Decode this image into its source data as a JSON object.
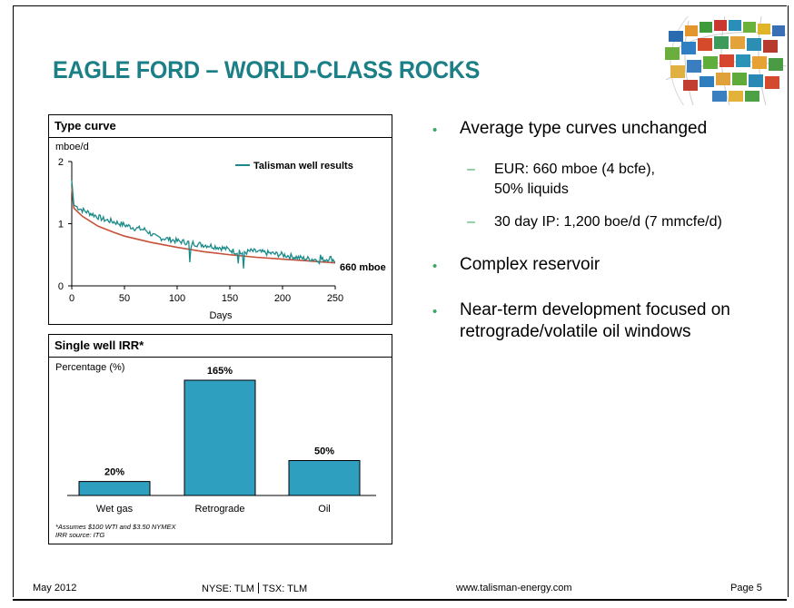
{
  "title": "EAGLE FORD – WORLD-CLASS ROCKS",
  "type_curve": {
    "panel_title": "Type curve",
    "y_unit": "mboe/d",
    "x_label": "Days",
    "legend": "Talisman well results",
    "end_label": "660 mboe",
    "x_ticks": [
      "0",
      "50",
      "100",
      "150",
      "200",
      "250"
    ],
    "y_ticks": [
      "0",
      "1",
      "2"
    ]
  },
  "irr": {
    "panel_title": "Single well IRR*",
    "y_unit": "Percentage (%)",
    "footnote_1": "*Assumes $100 WTI and $3.50 NYMEX",
    "footnote_2": "IRR source: ITG"
  },
  "chart_data": [
    {
      "type": "line",
      "title": "Type curve",
      "xlabel": "Days",
      "ylabel": "mboe/d",
      "xlim": [
        0,
        250
      ],
      "ylim": [
        0,
        2
      ],
      "series": [
        {
          "name": "Talisman well results",
          "color": "#1a8a8a",
          "x": [
            0,
            2,
            5,
            10,
            20,
            30,
            40,
            50,
            60,
            70,
            80,
            90,
            100,
            110,
            120,
            130,
            140,
            150,
            160,
            170,
            180,
            190,
            200,
            210,
            220,
            230,
            240,
            245,
            250
          ],
          "y": [
            1.7,
            1.3,
            1.27,
            1.22,
            1.15,
            1.07,
            1.03,
            0.98,
            0.93,
            0.9,
            0.78,
            0.76,
            0.72,
            0.7,
            0.67,
            0.65,
            0.62,
            0.58,
            0.52,
            0.56,
            0.54,
            0.52,
            0.5,
            0.47,
            0.44,
            0.43,
            0.42,
            0.45,
            0.4
          ]
        },
        {
          "name": "Type curve",
          "color": "#c8503a",
          "x": [
            0,
            2,
            10,
            25,
            40,
            50,
            75,
            100,
            125,
            150,
            175,
            200,
            225,
            250
          ],
          "y": [
            1.6,
            1.25,
            1.12,
            0.96,
            0.86,
            0.8,
            0.7,
            0.62,
            0.55,
            0.5,
            0.46,
            0.43,
            0.4,
            0.37
          ]
        }
      ]
    },
    {
      "type": "bar",
      "title": "Single well IRR*",
      "ylabel": "Percentage (%)",
      "categories": [
        "Wet gas",
        "Retrograde",
        "Oil"
      ],
      "values": [
        20,
        165,
        50
      ],
      "value_labels": [
        "20%",
        "165%",
        "50%"
      ],
      "color": "#2f9fbf",
      "ylim": [
        0,
        180
      ]
    }
  ],
  "bullets": [
    {
      "text": "Average type curves unchanged"
    },
    {
      "text": "Complex reservoir"
    },
    {
      "text": "Near-term development focused on retrograde/volatile oil windows"
    }
  ],
  "subbullets": [
    {
      "line1": "EUR: 660 mboe (4 bcfe),",
      "line2": "50% liquids"
    },
    {
      "line1": "30 day IP: 1,200 boe/d (7 mmcfe/d)"
    }
  ],
  "footer": {
    "date": "May 2012",
    "ticker_nyse": "NYSE: TLM",
    "ticker_tsx": "TSX: TLM",
    "website": "www.talisman-energy.com",
    "page": "Page 5"
  },
  "colors": {
    "title": "#1a7f86",
    "accent_bullet": "#3aa860",
    "bar": "#2f9fbf",
    "well_line": "#1a8a8a",
    "type_line": "#c8503a"
  }
}
